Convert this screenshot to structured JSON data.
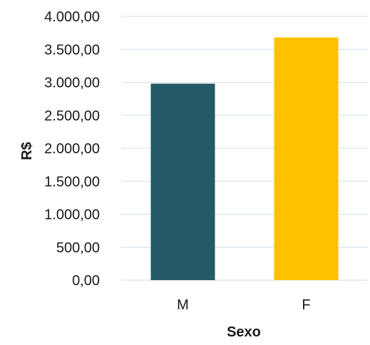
{
  "chart_data": {
    "type": "bar",
    "categories": [
      "M",
      "F"
    ],
    "values": [
      2980,
      3680
    ],
    "colors": [
      "#255967",
      "#FFC000"
    ],
    "xlabel": "Sexo",
    "ylabel": "R$",
    "ylim": [
      0,
      4000
    ],
    "ytick_step": 500,
    "ytick_labels": [
      "0,00",
      "500,00",
      "1.000,00",
      "1.500,00",
      "2.000,00",
      "2.500,00",
      "3.000,00",
      "3.500,00",
      "4.000,00"
    ],
    "grid": true,
    "gridline_color": "#d9e2f0",
    "legend": "none"
  }
}
